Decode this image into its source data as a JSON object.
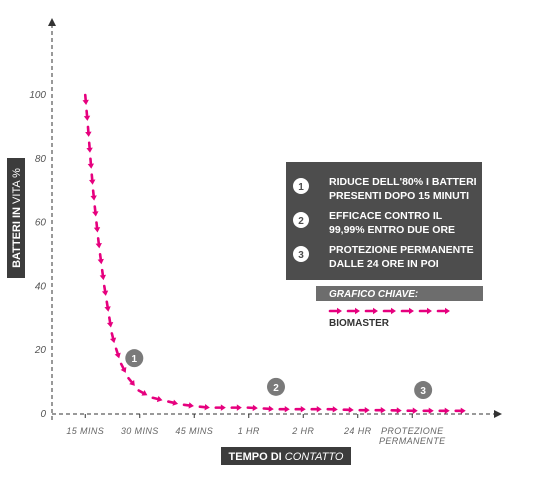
{
  "colors": {
    "accent": "#e6007e",
    "panel": "#4d4d4d",
    "key_header": "#6d6d6d",
    "marker": "#7a7a7a",
    "axis": "#333333",
    "label_box": "#3c3c3c"
  },
  "chart_data": {
    "type": "line",
    "xlabel_bold": "TEMPO DI",
    "xlabel_light": "CONTATTO",
    "ylabel_bold": "BATTERI IN",
    "ylabel_light": "VITA %",
    "ylim": [
      0,
      100
    ],
    "yticks": [
      "0",
      "20",
      "40",
      "60",
      "80",
      "100"
    ],
    "categories": [
      {
        "line1": "15 MINS",
        "line2": ""
      },
      {
        "line1": "30 MINS",
        "line2": ""
      },
      {
        "line1": "45 MINS",
        "line2": ""
      },
      {
        "line1": "1 HR",
        "line2": ""
      },
      {
        "line1": "2 HR",
        "line2": ""
      },
      {
        "line1": "24 HR",
        "line2": ""
      },
      {
        "line1": "PROTEZIONE",
        "line2": "PERMANENTE"
      }
    ],
    "series": [
      {
        "name": "BIOMASTER",
        "x": [
          0,
          0.05,
          0.1,
          0.15,
          0.25,
          0.35,
          0.5,
          0.65,
          0.8,
          1,
          1.25,
          1.5,
          1.75,
          2,
          2.25,
          2.5,
          3,
          3.5,
          4,
          4.5,
          5,
          5.5,
          6,
          6.5,
          7
        ],
        "values": [
          100,
          90,
          79,
          69,
          53,
          40,
          24,
          16,
          11,
          7,
          5,
          4,
          3,
          2.5,
          2,
          2,
          2,
          1.5,
          1.5,
          1.5,
          1.2,
          1.2,
          1,
          1,
          1
        ]
      }
    ],
    "markers": [
      {
        "label": "1",
        "x": 0.9,
        "y": 15
      },
      {
        "label": "2",
        "x": 3.5,
        "y": 6
      },
      {
        "label": "3",
        "x": 6.2,
        "y": 5
      }
    ],
    "grid": false,
    "legend": "right"
  },
  "notes": [
    {
      "num": "1",
      "line1": "RIDUCE DELL'80% I BATTERI",
      "line2": "PRESENTI DOPO 15 MINUTI"
    },
    {
      "num": "2",
      "line1": "EFFICACE  CONTRO IL",
      "line2": "99,99% ENTRO DUE ORE"
    },
    {
      "num": "3",
      "line1": "PROTEZIONE PERMANENTE",
      "line2": "DALLE 24 ORE IN POI"
    }
  ],
  "key": {
    "header": "GRAFICO CHIAVE:",
    "series_label": "BIOMASTER"
  }
}
